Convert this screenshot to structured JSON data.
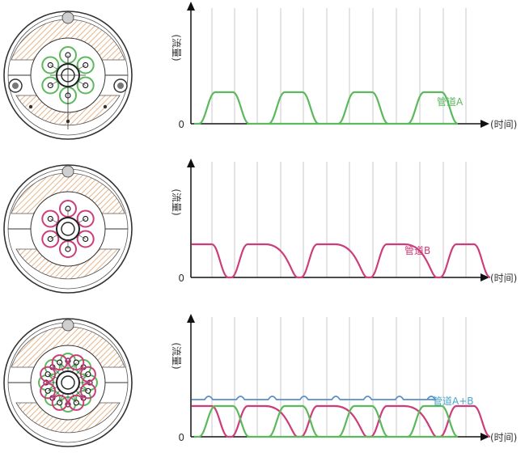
{
  "panels": [
    {
      "id": "a",
      "y_label": "(流量)",
      "zero_label": "0",
      "x_label": "(时间)",
      "series_label": "管道A",
      "ring_colors": [
        "green"
      ]
    },
    {
      "id": "b",
      "y_label": "(流量)",
      "zero_label": "0",
      "x_label": "(时间)",
      "series_label": "管道B",
      "ring_colors": [
        "pink"
      ]
    },
    {
      "id": "ab",
      "y_label": "(流量)",
      "zero_label": "0",
      "x_label": "(时间)",
      "series_label": "管道A+B",
      "ring_colors": [
        "green",
        "pink"
      ]
    }
  ],
  "colors": {
    "green": "#5cb85c",
    "pink": "#cc3d7a",
    "blue": "#5b8fc9",
    "blue_label": "#4aa6c9",
    "hatch": "#e6b58a",
    "axis": "#111111",
    "grid": "#bdbdbd"
  }
}
